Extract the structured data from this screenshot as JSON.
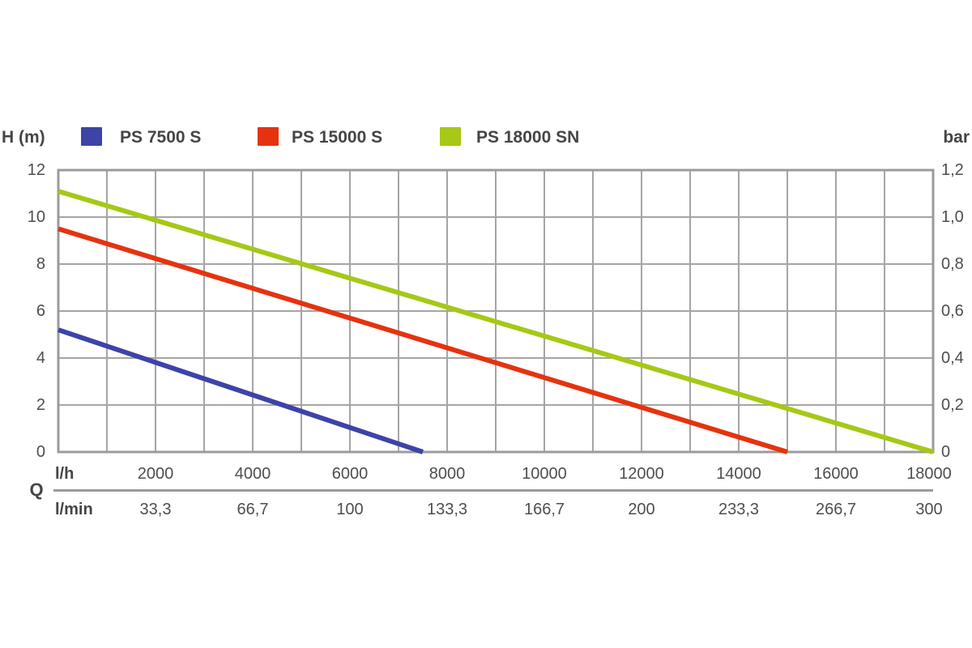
{
  "header": {
    "y_left_unit": "H (m)",
    "y_right_unit": "bar"
  },
  "x_axis_table": {
    "quantity_symbol": "Q",
    "row_primary_label": "l/h",
    "row_secondary_label": "l/min"
  },
  "chart_data": {
    "type": "line",
    "title": "",
    "grid": true,
    "legend_position": "top",
    "style": {
      "grid_color": "#a5a5a5",
      "border_color": "#9b9b9b",
      "text_color": "#4e4e50",
      "line_width": 6
    },
    "x_axis": {
      "unit_primary": "l/h",
      "unit_secondary": "l/min",
      "range": [
        0,
        18000
      ],
      "gridline_step": 1000,
      "label_step": 2000,
      "ticks_lh": [
        "2000",
        "4000",
        "6000",
        "8000",
        "10000",
        "12000",
        "14000",
        "16000",
        "18000"
      ],
      "ticks_lmin": [
        "33,3",
        "66,7",
        "100",
        "133,3",
        "166,7",
        "200",
        "233,3",
        "266,7",
        "300"
      ]
    },
    "y_axis_left": {
      "unit": "H (m)",
      "range": [
        0,
        12
      ],
      "gridline_step": 2,
      "ticks": [
        "12",
        "10",
        "8",
        "6",
        "4",
        "2",
        "0"
      ]
    },
    "y_axis_right": {
      "unit": "bar",
      "range": [
        0,
        1.2
      ],
      "ticks": [
        "1,2",
        "1,0",
        "0,8",
        "0,6",
        "0,4",
        "0,2",
        "0"
      ]
    },
    "series": [
      {
        "name": "PS 7500 S",
        "color": "#3c44a8",
        "x_unit": "l/h",
        "y_unit": "m",
        "points": [
          [
            0,
            5.2
          ],
          [
            7500,
            0
          ]
        ]
      },
      {
        "name": "PS 15000 S",
        "color": "#e5330f",
        "x_unit": "l/h",
        "y_unit": "m",
        "points": [
          [
            0,
            9.5
          ],
          [
            15000,
            0
          ]
        ]
      },
      {
        "name": "PS 18000 SN",
        "color": "#a6c816",
        "x_unit": "l/h",
        "y_unit": "m",
        "points": [
          [
            0,
            11.1
          ],
          [
            18000,
            0
          ]
        ]
      }
    ]
  }
}
